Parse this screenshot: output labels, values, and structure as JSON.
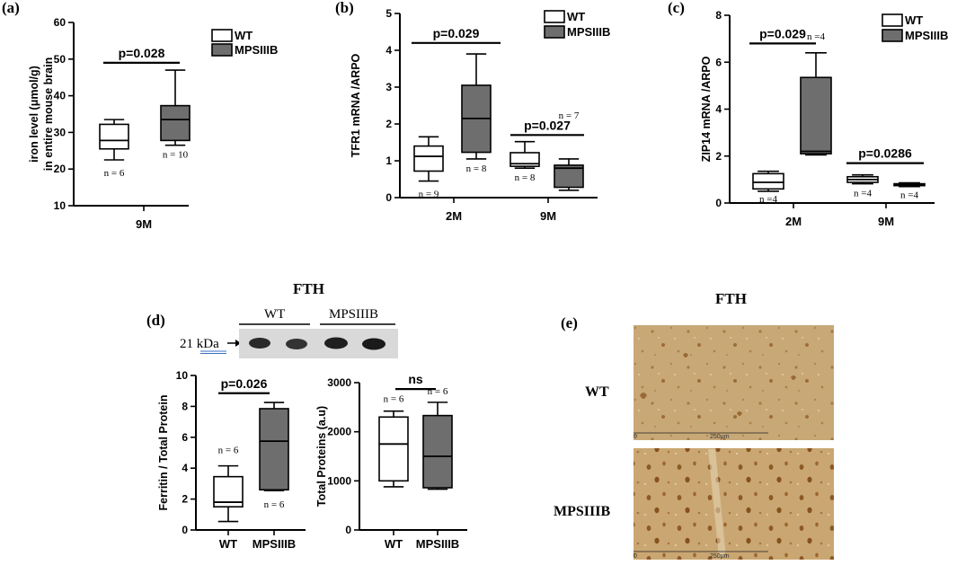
{
  "colors": {
    "wt_fill": "#ffffff",
    "mps_fill": "#6e6e6e",
    "mps_fill_dark": "#555555",
    "tissue_base": "#c7a677",
    "tissue_cell": "#8a5a26"
  },
  "legend": {
    "wt": "WT",
    "mps": "MPSIIIB"
  },
  "panels": {
    "a": {
      "letter": "(a)"
    },
    "b": {
      "letter": "(b)"
    },
    "c": {
      "letter": "(c)"
    },
    "d": {
      "letter": "(d)",
      "title": "FTH",
      "blot_wt": "WT",
      "blot_mps": "MPSIIIB",
      "blot_kda": "21 kDa",
      "blot_kda_num": "21",
      "blot_kda_unit": "kDa"
    },
    "e": {
      "letter": "(e)",
      "title": "FTH",
      "row_wt": "WT",
      "row_mps": "MPSIIIB",
      "scale_zero": "0",
      "scale_len": "250μm"
    }
  },
  "chart_data": [
    {
      "id": "a",
      "type": "box",
      "ylabel": "iron level (μmol/g) in entire mouse brain",
      "ylabel_line1": "iron level (μmol/g)",
      "ylabel_line2": "in entire mouse brain",
      "ylim": [
        10,
        60
      ],
      "yticks": [
        10,
        20,
        30,
        40,
        50,
        60
      ],
      "categories": [
        "9M"
      ],
      "series": [
        {
          "name": "WT",
          "boxes": [
            {
              "min": 22.5,
              "q1": 25.5,
              "median": 27.8,
              "q3": 32.2,
              "max": 33.5,
              "n": "n = 6"
            }
          ]
        },
        {
          "name": "MPSIIIB",
          "boxes": [
            {
              "min": 26.5,
              "q1": 27.8,
              "median": 33.5,
              "q3": 37.3,
              "max": 47.0,
              "n": "n = 10"
            }
          ]
        }
      ],
      "significance": [
        {
          "label": "p=0.028",
          "y": 49
        }
      ]
    },
    {
      "id": "b",
      "type": "box",
      "ylabel": "TFR1 mRNA /ARPO",
      "ylim": [
        0,
        5
      ],
      "yticks": [
        0,
        1,
        2,
        3,
        4,
        5
      ],
      "categories": [
        "2M",
        "9M"
      ],
      "series": [
        {
          "name": "WT",
          "boxes": [
            {
              "min": 0.45,
              "q1": 0.72,
              "median": 1.12,
              "q3": 1.4,
              "max": 1.65,
              "n": "n = 9"
            },
            {
              "min": 0.8,
              "q1": 0.85,
              "median": 0.92,
              "q3": 1.22,
              "max": 1.52,
              "n": "n = 8"
            }
          ]
        },
        {
          "name": "MPSIIIB",
          "boxes": [
            {
              "min": 1.05,
              "q1": 1.23,
              "median": 2.15,
              "q3": 3.05,
              "max": 3.9,
              "n": "n = 8"
            },
            {
              "min": 0.2,
              "q1": 0.28,
              "median": 0.8,
              "q3": 0.88,
              "max": 1.05,
              "n": "n = 7"
            }
          ]
        }
      ],
      "significance": [
        {
          "label": "p=0.029",
          "y": 4.2
        },
        {
          "label": "p=0.027",
          "y": 1.7
        }
      ]
    },
    {
      "id": "c",
      "type": "box",
      "ylabel": "ZIP14 mRNA /ARPO",
      "ylim": [
        0,
        8
      ],
      "yticks": [
        0,
        2,
        4,
        6,
        8
      ],
      "categories": [
        "2M",
        "9M"
      ],
      "series": [
        {
          "name": "WT",
          "boxes": [
            {
              "min": 0.5,
              "q1": 0.6,
              "median": 0.88,
              "q3": 1.25,
              "max": 1.35,
              "n": "n =4"
            },
            {
              "min": 0.82,
              "q1": 0.88,
              "median": 1.0,
              "q3": 1.12,
              "max": 1.2,
              "n": "n =4"
            }
          ]
        },
        {
          "name": "MPSIIIB",
          "boxes": [
            {
              "min": 2.05,
              "q1": 2.1,
              "median": 2.2,
              "q3": 5.35,
              "max": 6.4,
              "n": "n =4"
            },
            {
              "min": 0.7,
              "q1": 0.74,
              "median": 0.78,
              "q3": 0.82,
              "max": 0.86,
              "n": "n =4"
            }
          ]
        }
      ],
      "significance": [
        {
          "label": "p=0.029",
          "y": 6.8
        },
        {
          "label": "p=0.0286",
          "y": 1.7
        }
      ]
    },
    {
      "id": "d1",
      "type": "box",
      "ylabel": "Ferritin / Total Protein",
      "ylim": [
        0,
        10
      ],
      "yticks": [
        0,
        2,
        4,
        6,
        8,
        10
      ],
      "categories": [
        "WT",
        "MPSIIIB"
      ],
      "series": [
        {
          "name": "WT",
          "boxes": [
            {
              "min": 0.55,
              "q1": 1.5,
              "median": 1.8,
              "q3": 3.45,
              "max": 4.15,
              "n": "n = 6"
            }
          ]
        },
        {
          "name": "MPSIIIB",
          "boxes": [
            {
              "min": 2.55,
              "q1": 2.6,
              "median": 5.75,
              "q3": 7.85,
              "max": 8.25,
              "n": "n = 6"
            }
          ]
        }
      ],
      "significance": [
        {
          "label": "p=0.026",
          "y": 8.85
        }
      ]
    },
    {
      "id": "d2",
      "type": "box",
      "ylabel": "Total Proteins (a.u)",
      "ylim": [
        0,
        3000
      ],
      "yticks": [
        0,
        1000,
        2000,
        3000
      ],
      "categories": [
        "WT",
        "MPSIIIB"
      ],
      "series": [
        {
          "name": "WT",
          "boxes": [
            {
              "min": 880,
              "q1": 1000,
              "median": 1750,
              "q3": 2300,
              "max": 2420,
              "n": "n = 6"
            }
          ]
        },
        {
          "name": "MPSIIIB",
          "boxes": [
            {
              "min": 830,
              "q1": 860,
              "median": 1500,
              "q3": 2330,
              "max": 2600,
              "n": "n = 6"
            }
          ]
        }
      ],
      "significance": [
        {
          "label": "ns",
          "y": 2870
        }
      ]
    }
  ]
}
